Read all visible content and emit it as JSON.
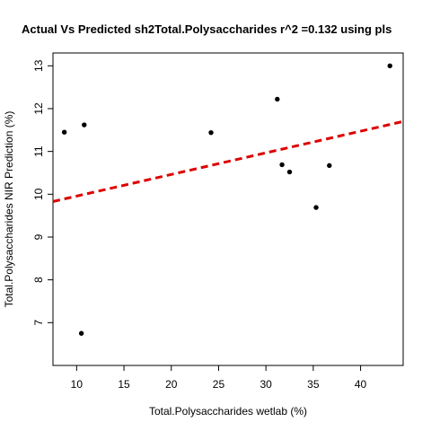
{
  "chart_data": {
    "type": "scatter",
    "title": "Actual Vs Predicted sh2Total.Polysaccharides r^2 =0.132 using pls",
    "xlabel": "Total.Polysaccharides wetlab (%)",
    "ylabel": "Total.Polysaccharides NIR Prediction (%)",
    "xlim": [
      7.5,
      44.5
    ],
    "ylim": [
      6.0,
      13.3
    ],
    "xticks": [
      10,
      15,
      20,
      25,
      30,
      35,
      40
    ],
    "yticks": [
      7,
      8,
      9,
      10,
      11,
      12,
      13
    ],
    "grid": false,
    "points": [
      {
        "x": 8.7,
        "y": 11.45
      },
      {
        "x": 10.5,
        "y": 6.75
      },
      {
        "x": 10.8,
        "y": 11.62
      },
      {
        "x": 24.2,
        "y": 11.44
      },
      {
        "x": 31.2,
        "y": 12.22
      },
      {
        "x": 31.7,
        "y": 10.69
      },
      {
        "x": 32.5,
        "y": 10.52
      },
      {
        "x": 35.3,
        "y": 9.69
      },
      {
        "x": 36.7,
        "y": 10.67
      },
      {
        "x": 43.1,
        "y": 13.0
      }
    ],
    "fit_line": {
      "x": [
        7.5,
        44.5
      ],
      "y": [
        9.83,
        11.7
      ],
      "style": "dashed",
      "color": "#dd0000"
    },
    "point_color": "#000000"
  }
}
